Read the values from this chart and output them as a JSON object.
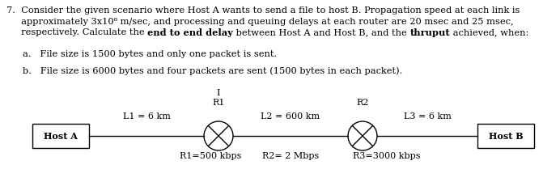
{
  "line1": "7.  Consider the given scenario where Host A wants to send a file to host B. Propagation speed at each link is",
  "line2": "     approximately 3x10⁸ m/sec, and processing and queuing delays at each router are 20 msec and 25 msec,",
  "line3_pre": "     respectively. Calculate the ",
  "line3_bold1": "end to end delay",
  "line3_mid": " between Host A and Host B, and the ",
  "line3_bold2": "thruput",
  "line3_end": " achieved, when:",
  "item_a": "a.   File size is 1500 bytes and only one packet is sent.",
  "item_b": "b.   File size is 6000 bytes and four packets are sent (1500 bytes in each packet).",
  "host_a_label": "Host A",
  "host_b_label": "Host B",
  "router1_label": "R1",
  "router2_label": "R2",
  "link1_label": "L1 = 6 km",
  "link2_label": "L2 = 600 km",
  "link3_label": "L3 = 6 km",
  "rate1_label": "R1=500 kbps",
  "rate2_label": "R2= 2 Mbps",
  "rate3_label": "R3=3000 kbps",
  "tick_label": "I",
  "bg_color": "#ffffff",
  "text_color": "#000000",
  "box_color": "#000000",
  "line_color": "#000000",
  "indent_a": "      ",
  "indent_b": "      "
}
